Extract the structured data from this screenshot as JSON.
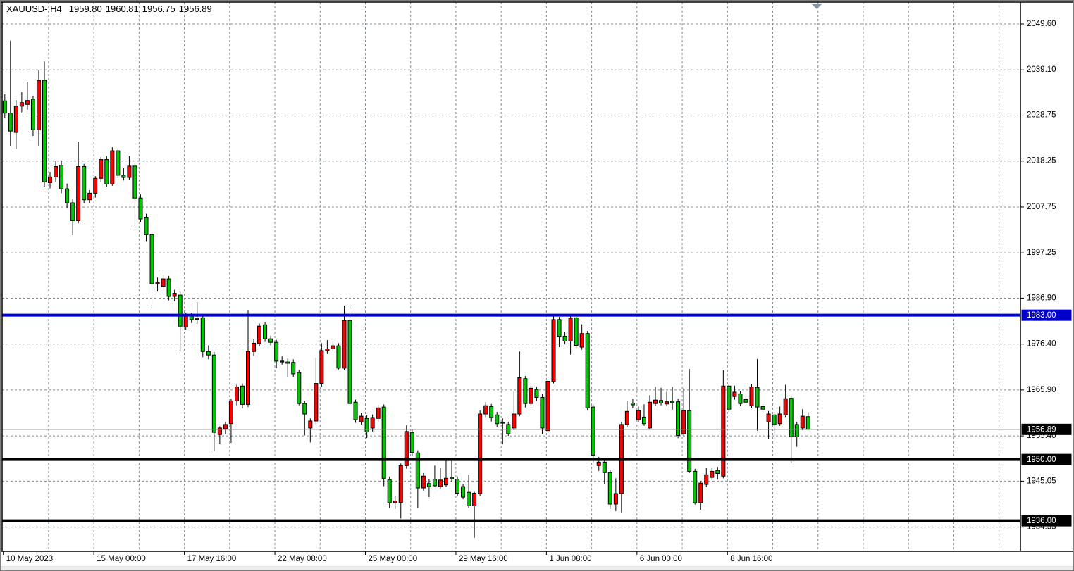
{
  "title": {
    "symbol_period": "XAUUSD-,H4",
    "open": "1959.80",
    "high": "1960.81",
    "low": "1956.75",
    "close": "1956.89"
  },
  "colors": {
    "background": "#FFFFFF",
    "grid": "#7E8C9C",
    "up_candle": "#FF0000",
    "down_candle": "#00C800",
    "candle_outline": "#000000",
    "blue_level_line": "#0000C8",
    "black_level_line": "#000000",
    "bid_line": "#808080",
    "tag_text": "#FFFFFF",
    "axis_text": "#000000",
    "autoscroll_triangle": "#8496A5"
  },
  "price_axis": {
    "ticks": [
      "2049.60",
      "2039.10",
      "2028.75",
      "2018.25",
      "2007.75",
      "1997.25",
      "1986.90",
      "1976.40",
      "1965.90",
      "1955.40",
      "1945.05",
      "1934.55"
    ],
    "tags": [
      {
        "value": "1983.00",
        "bg": "#0000C8"
      },
      {
        "value": "1956.89",
        "bg": "#000000"
      },
      {
        "value": "1950.00",
        "bg": "#000000"
      },
      {
        "value": "1936.00",
        "bg": "#000000"
      }
    ]
  },
  "time_axis": {
    "ticks": [
      {
        "label": "10 May 2023",
        "bar": 0
      },
      {
        "label": "15 May 00:00",
        "bar": 16
      },
      {
        "label": "17 May 16:00",
        "bar": 32
      },
      {
        "label": "22 May 08:00",
        "bar": 48
      },
      {
        "label": "25 May 00:00",
        "bar": 64
      },
      {
        "label": "29 May 16:00",
        "bar": 80
      },
      {
        "label": "1 Jun 08:00",
        "bar": 96
      },
      {
        "label": "6 Jun 00:00",
        "bar": 112
      },
      {
        "label": "8 Jun 16:00",
        "bar": 128
      }
    ]
  },
  "chart_data": {
    "type": "candlestick",
    "symbol": "XAUUSD-",
    "timeframe": "H4",
    "title": "XAUUSD-,H4 1959.80 1960.81 1956.75 1956.89",
    "color_convention": "red=bullish, green=bearish",
    "y_axis_top_price": 2049.6,
    "y_axis_bottom_price": 1930.0,
    "bars_per_vgrid": 8,
    "bars_per_label": 16,
    "horizontal_lines": [
      {
        "price": 1983.0,
        "color": "#0000C8",
        "thickness": 4,
        "role": "resistance-level"
      },
      {
        "price": 1950.0,
        "color": "#000000",
        "thickness": 4,
        "role": "support-level"
      },
      {
        "price": 1936.0,
        "color": "#000000",
        "thickness": 4,
        "role": "support-level"
      },
      {
        "price": 1956.89,
        "color": "#808080",
        "thickness": 1,
        "role": "bid-price-line"
      }
    ],
    "candles": [
      [
        2032.0,
        2033.5,
        2028.0,
        2029.2
      ],
      [
        2029.2,
        2045.8,
        2021.6,
        2025.1
      ],
      [
        2024.8,
        2032.2,
        2021.0,
        2030.8
      ],
      [
        2030.8,
        2034.0,
        2029.4,
        2031.6
      ],
      [
        2031.2,
        2036.4,
        2030.0,
        2032.1
      ],
      [
        2032.4,
        2033.2,
        2024.0,
        2025.4
      ],
      [
        2025.4,
        2039.0,
        2021.6,
        2036.7
      ],
      [
        2036.7,
        2041.0,
        2012.4,
        2013.5
      ],
      [
        2013.3,
        2015.6,
        2012.0,
        2014.6
      ],
      [
        2014.6,
        2018.2,
        2013.4,
        2017.0
      ],
      [
        2017.3,
        2018.4,
        2010.9,
        2011.9
      ],
      [
        2011.9,
        2013.1,
        2007.4,
        2008.7
      ],
      [
        2008.7,
        2009.6,
        2001.3,
        2004.6
      ],
      [
        2004.6,
        2022.7,
        2004.0,
        2017.0
      ],
      [
        2017.0,
        2017.6,
        2008.6,
        2009.4
      ],
      [
        2009.4,
        2011.6,
        2008.7,
        2010.9
      ],
      [
        2010.9,
        2014.8,
        2009.9,
        2014.3
      ],
      [
        2014.3,
        2019.2,
        2013.4,
        2018.6
      ],
      [
        2018.6,
        2019.4,
        2012.4,
        2013.0
      ],
      [
        2013.0,
        2021.4,
        2012.6,
        2020.6
      ],
      [
        2020.6,
        2021.2,
        2014.3,
        2015.0
      ],
      [
        2015.0,
        2016.6,
        2013.8,
        2014.5
      ],
      [
        2014.5,
        2019.4,
        2013.9,
        2017.1
      ],
      [
        2017.1,
        2017.8,
        2003.4,
        2009.8
      ],
      [
        2009.8,
        2010.6,
        2004.3,
        2005.0
      ],
      [
        2005.4,
        2006.2,
        1999.8,
        2001.4
      ],
      [
        2001.4,
        2001.9,
        1985.2,
        1990.2
      ],
      [
        1990.2,
        1991.6,
        1988.4,
        1990.5
      ],
      [
        1989.6,
        1992.2,
        1988.9,
        1991.3
      ],
      [
        1991.3,
        1992.0,
        1986.4,
        1987.3
      ],
      [
        1987.3,
        1988.8,
        1986.2,
        1988.0
      ],
      [
        1987.6,
        1988.4,
        1974.9,
        1980.5
      ],
      [
        1980.3,
        1983.6,
        1979.7,
        1982.9
      ],
      [
        1982.9,
        1983.5,
        1981.2,
        1982.0
      ],
      [
        1982.2,
        1986.0,
        1981.0,
        1982.0
      ],
      [
        1982.4,
        1983.1,
        1973.4,
        1974.7
      ],
      [
        1974.7,
        1976.1,
        1972.9,
        1973.9
      ],
      [
        1973.9,
        1974.6,
        1951.9,
        1956.2
      ],
      [
        1955.7,
        1957.6,
        1953.5,
        1957.2
      ],
      [
        1957.0,
        1958.6,
        1955.9,
        1958.0
      ],
      [
        1958.2,
        1963.9,
        1953.8,
        1963.4
      ],
      [
        1963.4,
        1967.1,
        1962.4,
        1966.6
      ],
      [
        1966.8,
        1967.4,
        1961.7,
        1962.6
      ],
      [
        1962.6,
        1984.1,
        1962.0,
        1974.7
      ],
      [
        1974.7,
        1977.6,
        1973.7,
        1976.6
      ],
      [
        1976.6,
        1981.1,
        1975.9,
        1980.5
      ],
      [
        1980.8,
        1981.4,
        1976.9,
        1977.6
      ],
      [
        1977.6,
        1978.3,
        1976.1,
        1976.8
      ],
      [
        1976.8,
        1977.4,
        1970.9,
        1972.5
      ],
      [
        1972.5,
        1973.6,
        1971.7,
        1972.3
      ],
      [
        1972.3,
        1973.1,
        1968.8,
        1972.0
      ],
      [
        1972.2,
        1972.9,
        1968.9,
        1969.6
      ],
      [
        1969.9,
        1970.5,
        1962.4,
        1962.8
      ],
      [
        1962.8,
        1963.4,
        1955.5,
        1960.4
      ],
      [
        1957.2,
        1959.4,
        1953.9,
        1958.8
      ],
      [
        1958.8,
        1973.3,
        1958.1,
        1967.4
      ],
      [
        1967.4,
        1976.6,
        1966.7,
        1974.9
      ],
      [
        1974.9,
        1977.3,
        1974.1,
        1975.3
      ],
      [
        1975.3,
        1977.1,
        1974.7,
        1976.0
      ],
      [
        1976.0,
        1976.6,
        1970.6,
        1970.9
      ],
      [
        1970.9,
        1985.2,
        1970.4,
        1981.8
      ],
      [
        1981.8,
        1985.0,
        1962.4,
        1962.8
      ],
      [
        1963.1,
        1963.7,
        1958.4,
        1959.1
      ],
      [
        1958.6,
        1960.6,
        1958.0,
        1959.9
      ],
      [
        1959.4,
        1960.1,
        1954.9,
        1956.3
      ],
      [
        1957.2,
        1960.3,
        1956.4,
        1959.6
      ],
      [
        1959.4,
        1962.4,
        1958.7,
        1961.8
      ],
      [
        1962.0,
        1962.6,
        1943.9,
        1945.7
      ],
      [
        1945.4,
        1946.1,
        1938.9,
        1940.1
      ],
      [
        1940.1,
        1941.6,
        1938.7,
        1940.5
      ],
      [
        1940.2,
        1949.1,
        1936.5,
        1948.6
      ],
      [
        1948.6,
        1957.8,
        1947.9,
        1956.4
      ],
      [
        1956.2,
        1956.9,
        1950.9,
        1951.6
      ],
      [
        1951.5,
        1952.1,
        1938.9,
        1943.5
      ],
      [
        1943.5,
        1946.9,
        1942.9,
        1946.2
      ],
      [
        1944.5,
        1945.6,
        1941.4,
        1943.8
      ],
      [
        1945.5,
        1948.6,
        1943.7,
        1944.0
      ],
      [
        1943.8,
        1948.1,
        1943.4,
        1945.3
      ],
      [
        1944.2,
        1949.8,
        1943.7,
        1945.7
      ],
      [
        1945.9,
        1949.7,
        1944.9,
        1945.6
      ],
      [
        1945.5,
        1946.1,
        1941.7,
        1942.3
      ],
      [
        1943.8,
        1944.4,
        1940.9,
        1941.4
      ],
      [
        1942.5,
        1946.5,
        1938.9,
        1939.4
      ],
      [
        1939.4,
        1942.6,
        1932.1,
        1942.3
      ],
      [
        1942.2,
        1961.2,
        1941.7,
        1960.4
      ],
      [
        1960.4,
        1963.1,
        1959.7,
        1962.3
      ],
      [
        1962.1,
        1962.7,
        1958.7,
        1959.6
      ],
      [
        1960.2,
        1960.9,
        1957.4,
        1958.2
      ],
      [
        1958.5,
        1959.4,
        1953.5,
        1958.3
      ],
      [
        1958.0,
        1958.6,
        1955.4,
        1955.9
      ],
      [
        1957.2,
        1965.5,
        1956.7,
        1960.4
      ],
      [
        1960.4,
        1974.7,
        1959.9,
        1968.7
      ],
      [
        1968.5,
        1969.1,
        1961.9,
        1962.8
      ],
      [
        1962.8,
        1966.9,
        1962.2,
        1966.3
      ],
      [
        1966.0,
        1966.6,
        1963.4,
        1964.2
      ],
      [
        1964.2,
        1964.9,
        1955.9,
        1957.2
      ],
      [
        1956.6,
        1968.3,
        1956.2,
        1967.9
      ],
      [
        1967.9,
        1982.8,
        1967.4,
        1982.0
      ],
      [
        1982.0,
        1982.6,
        1975.7,
        1978.2
      ],
      [
        1978.2,
        1979.1,
        1976.4,
        1977.1
      ],
      [
        1977.1,
        1982.9,
        1974.0,
        1982.3
      ],
      [
        1982.4,
        1983.1,
        1975.4,
        1976.1
      ],
      [
        1975.7,
        1980.9,
        1975.1,
        1978.8
      ],
      [
        1978.8,
        1979.4,
        1961.2,
        1961.8
      ],
      [
        1962.0,
        1962.6,
        1949.4,
        1951.0
      ],
      [
        1948.6,
        1950.6,
        1947.4,
        1949.4
      ],
      [
        1949.4,
        1950.1,
        1944.3,
        1947.0
      ],
      [
        1947.0,
        1947.6,
        1938.7,
        1939.8
      ],
      [
        1939.8,
        1945.7,
        1938.2,
        1942.2
      ],
      [
        1942.2,
        1958.6,
        1937.9,
        1958.0
      ],
      [
        1958.0,
        1963.4,
        1957.4,
        1961.0
      ],
      [
        1962.9,
        1963.9,
        1961.7,
        1962.5
      ],
      [
        1959.1,
        1962.1,
        1958.5,
        1961.2
      ],
      [
        1959.7,
        1962.6,
        1957.7,
        1958.2
      ],
      [
        1957.2,
        1964.7,
        1956.9,
        1963.1
      ],
      [
        1962.8,
        1966.6,
        1962.2,
        1963.6
      ],
      [
        1963.5,
        1966.4,
        1962.4,
        1962.9
      ],
      [
        1962.7,
        1965.5,
        1962.2,
        1963.2
      ],
      [
        1963.3,
        1966.6,
        1961.4,
        1963.0
      ],
      [
        1963.2,
        1963.9,
        1954.9,
        1955.5
      ],
      [
        1955.9,
        1966.3,
        1955.4,
        1961.2
      ],
      [
        1961.2,
        1970.7,
        1946.9,
        1947.3
      ],
      [
        1947.3,
        1947.9,
        1939.7,
        1940.1
      ],
      [
        1940.1,
        1945.1,
        1938.5,
        1944.6
      ],
      [
        1944.3,
        1948.1,
        1943.7,
        1946.5
      ],
      [
        1945.9,
        1948.0,
        1945.3,
        1947.3
      ],
      [
        1947.5,
        1948.3,
        1945.4,
        1946.8
      ],
      [
        1946.2,
        1970.4,
        1945.7,
        1966.8
      ],
      [
        1966.8,
        1967.4,
        1960.9,
        1961.5
      ],
      [
        1964.4,
        1966.9,
        1963.7,
        1965.4
      ],
      [
        1965.0,
        1965.6,
        1962.2,
        1962.8
      ],
      [
        1963.7,
        1964.6,
        1962.7,
        1963.1
      ],
      [
        1962.3,
        1967.2,
        1961.7,
        1966.6
      ],
      [
        1966.5,
        1973.0,
        1956.6,
        1962.0
      ],
      [
        1962.1,
        1963.1,
        1960.9,
        1961.5
      ],
      [
        1958.6,
        1961.1,
        1954.6,
        1960.4
      ],
      [
        1960.2,
        1960.9,
        1954.7,
        1958.0
      ],
      [
        1958.2,
        1962.1,
        1957.7,
        1960.4
      ],
      [
        1960.2,
        1967.1,
        1959.7,
        1963.9
      ],
      [
        1964.0,
        1964.6,
        1949.1,
        1955.2
      ],
      [
        1958.0,
        1958.6,
        1952.9,
        1955.2
      ],
      [
        1957.2,
        1961.5,
        1956.7,
        1959.9
      ],
      [
        1959.8,
        1960.81,
        1956.75,
        1956.89
      ]
    ]
  }
}
